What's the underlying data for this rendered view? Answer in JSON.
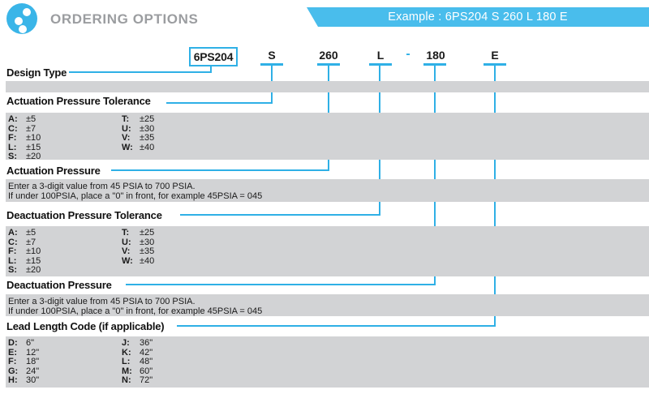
{
  "header": {
    "title": "ORDERING OPTIONS"
  },
  "banner": {
    "example": "Example : 6PS204 S 260 L 180 E"
  },
  "part_number": {
    "design_code": "6PS204",
    "actuation_tolerance_code": "S",
    "actuation_pressure_code": "260",
    "deactuation_tolerance_code": "L",
    "separator": "-",
    "deactuation_pressure_code": "180",
    "lead_length_code": "E"
  },
  "sections": {
    "design_type": {
      "heading": "Design Type"
    },
    "actuation_pressure_tolerance": {
      "heading": "Actuation Pressure Tolerance"
    },
    "actuation_pressure": {
      "heading": "Actuation Pressure",
      "note_line1": "Enter a 3-digit value from 45 PSIA to 700 PSIA.",
      "note_line2": "If under 100PSIA, place a \"0\" in front, for example 45PSIA = 045"
    },
    "deactuation_pressure_tolerance": {
      "heading": "Deactuation Pressure Tolerance"
    },
    "deactuation_pressure": {
      "heading": "Deactuation Pressure",
      "note_line1": "Enter a 3-digit value from 45 PSIA to 700 PSIA.",
      "note_line2": "If under 100PSIA, place a \"0\" in front, for example 45PSIA = 045"
    },
    "lead_length": {
      "heading": "Lead Length Code (if applicable)"
    }
  },
  "tolerance_table": {
    "left": [
      {
        "code": "A:",
        "value": "±5"
      },
      {
        "code": "C:",
        "value": "±7"
      },
      {
        "code": "F:",
        "value": "±10"
      },
      {
        "code": "L:",
        "value": "±15"
      },
      {
        "code": "S:",
        "value": "±20"
      }
    ],
    "right": [
      {
        "code": "T:",
        "value": "±25"
      },
      {
        "code": "U:",
        "value": "±30"
      },
      {
        "code": "V:",
        "value": "±35"
      },
      {
        "code": "W:",
        "value": "±40"
      }
    ]
  },
  "lead_length_table": {
    "left": [
      {
        "code": "D:",
        "value": "6\""
      },
      {
        "code": "E:",
        "value": "12\""
      },
      {
        "code": "F:",
        "value": "18\""
      },
      {
        "code": "G:",
        "value": "24\""
      },
      {
        "code": "H:",
        "value": "30\""
      }
    ],
    "right": [
      {
        "code": "J:",
        "value": "36\""
      },
      {
        "code": "K:",
        "value": "42\""
      },
      {
        "code": "L:",
        "value": "48\""
      },
      {
        "code": "M:",
        "value": "60\""
      },
      {
        "code": "N:",
        "value": "72\""
      }
    ]
  },
  "colors": {
    "accent_blue": "#2FB0E6",
    "banner_blue": "#49BDEC",
    "band_gray": "#D2D3D5",
    "title_gray": "#9B9DA0"
  }
}
